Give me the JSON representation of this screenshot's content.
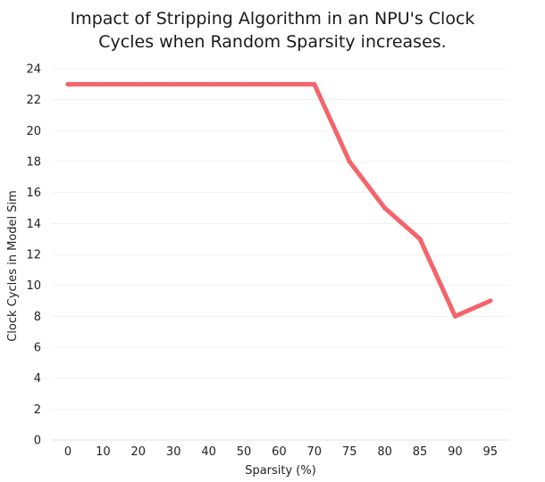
{
  "chart_data": {
    "type": "line",
    "title_lines": [
      "Impact of Stripping Algorithm in an NPU's Clock",
      "Cycles when Random Sparsity increases."
    ],
    "xlabel": "Sparsity (%)",
    "ylabel": "Clock Cycles in Model Sim",
    "categories": [
      "0",
      "10",
      "20",
      "30",
      "40",
      "50",
      "60",
      "70",
      "75",
      "80",
      "85",
      "90",
      "95"
    ],
    "series": [
      {
        "values": [
          23,
          23,
          23,
          23,
          23,
          23,
          23,
          23,
          18,
          15,
          13,
          8,
          9
        ],
        "color": "#f4646a"
      }
    ],
    "yticks": [
      0,
      2,
      4,
      6,
      8,
      10,
      12,
      14,
      16,
      18,
      20,
      22,
      24
    ],
    "ylim": [
      0,
      24
    ],
    "grid": true,
    "legend": "none"
  }
}
